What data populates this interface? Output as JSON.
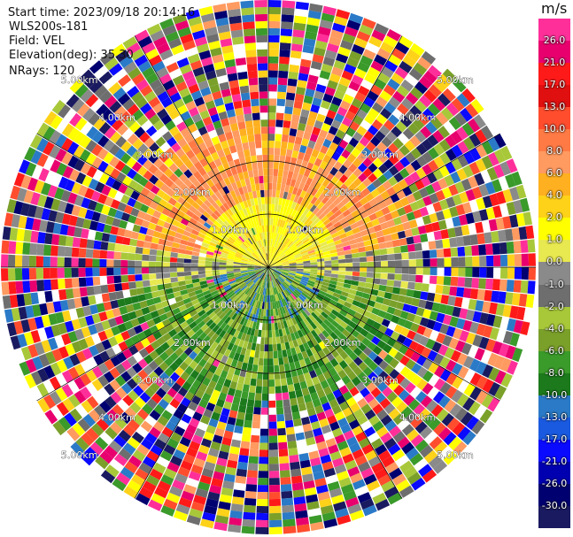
{
  "header": {
    "start_time": "Start time: 2023/09/18 20:14:16",
    "site": "WLS200s-181",
    "field": "Field: VEL",
    "elevation": "Elevation(deg): 35.30",
    "nrays": "NRays: 120"
  },
  "colorbar": {
    "unit": "m/s",
    "ticks": [
      "26.0",
      "21.0",
      "17.0",
      "13.0",
      "10.0",
      "8.0",
      "6.0",
      "4.0",
      "2.0",
      "1.0",
      "0.0",
      "-1.0",
      "-2.0",
      "-4.0",
      "-6.0",
      "-8.0",
      "-10.0",
      "-13.0",
      "-17.0",
      "-21.0",
      "-26.0",
      "-30.0"
    ],
    "colors": [
      "#ff2f9a",
      "#e8006e",
      "#ff1a1a",
      "#e01010",
      "#ff4d2e",
      "#ff7a45",
      "#ff9a60",
      "#ffb020",
      "#ffd21a",
      "#ffff00",
      "#e8e850",
      "#8a8a8a",
      "#6e6e6e",
      "#a8c83a",
      "#7aa02a",
      "#3a9a2a",
      "#1c7a1c",
      "#2a7ac8",
      "#1a5ae0",
      "#0a0aff",
      "#0000b0",
      "#000070",
      "#1a1a60"
    ]
  },
  "chart_data": {
    "type": "ppi",
    "field": "VEL",
    "units": "m/s",
    "range_rings": [
      "1.00km",
      "2.00km",
      "3.00km",
      "4.00km",
      "5.00km"
    ],
    "nrays": 120,
    "elevation_deg": 35.3
  }
}
